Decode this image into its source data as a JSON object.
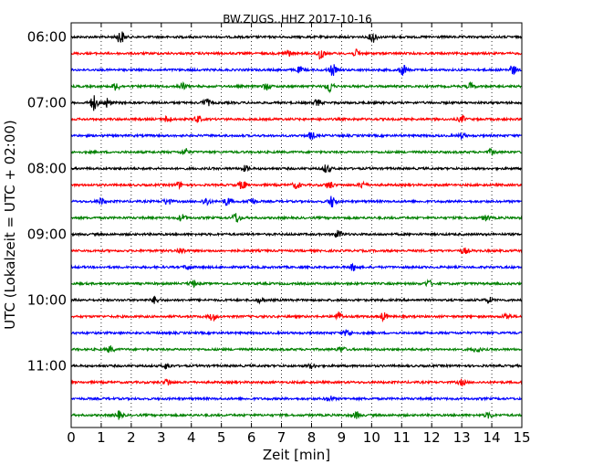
{
  "chart_data": {
    "type": "line",
    "title": "BW.ZUGS..HHZ 2017-10-16",
    "xlabel": "Zeit  [min]",
    "ylabel": "UTC (Lokalzeit = UTC + 02:00)",
    "xlim": [
      0,
      15
    ],
    "x_ticks": [
      "0",
      "1",
      "2",
      "3",
      "4",
      "5",
      "6",
      "7",
      "8",
      "9",
      "10",
      "11",
      "12",
      "13",
      "14",
      "15"
    ],
    "y_ticks": [
      "06:00",
      "07:00",
      "08:00",
      "09:00",
      "10:00",
      "11:00"
    ],
    "grid": "x-dotted",
    "trace_interval_min": 15,
    "trace_colors": [
      "#000000",
      "#ff0000",
      "#0000ff",
      "#008000"
    ],
    "traces": [
      {
        "start": "06:00",
        "color": "#000000",
        "events": [
          [
            1.65,
            0.9
          ],
          [
            10.05,
            0.7
          ]
        ]
      },
      {
        "start": "06:15",
        "color": "#ff0000",
        "events": [
          [
            7.2,
            0.45
          ],
          [
            8.3,
            0.9
          ],
          [
            9.5,
            0.45
          ]
        ]
      },
      {
        "start": "06:30",
        "color": "#0000ff",
        "events": [
          [
            7.6,
            0.35
          ],
          [
            8.7,
            0.75
          ],
          [
            11.05,
            0.7
          ],
          [
            14.7,
            0.6
          ]
        ]
      },
      {
        "start": "06:45",
        "color": "#008000",
        "events": [
          [
            1.5,
            0.5
          ],
          [
            3.7,
            0.45
          ],
          [
            6.5,
            0.45
          ],
          [
            8.6,
            0.85
          ],
          [
            13.3,
            0.4
          ]
        ]
      },
      {
        "start": "07:00",
        "color": "#000000",
        "events": [
          [
            0.75,
            1.0
          ],
          [
            1.2,
            0.6
          ],
          [
            4.5,
            0.5
          ],
          [
            8.2,
            0.4
          ]
        ]
      },
      {
        "start": "07:15",
        "color": "#ff0000",
        "events": [
          [
            3.2,
            0.4
          ],
          [
            4.2,
            0.45
          ],
          [
            13.0,
            0.4
          ]
        ]
      },
      {
        "start": "07:30",
        "color": "#0000ff",
        "events": [
          [
            8.0,
            0.45
          ],
          [
            13.0,
            0.3
          ]
        ]
      },
      {
        "start": "07:45",
        "color": "#008000",
        "events": [
          [
            3.8,
            0.45
          ],
          [
            14.0,
            0.35
          ]
        ]
      },
      {
        "start": "08:00",
        "color": "#000000",
        "events": [
          [
            5.8,
            0.35
          ],
          [
            8.5,
            0.55
          ]
        ]
      },
      {
        "start": "08:15",
        "color": "#ff0000",
        "events": [
          [
            3.6,
            0.35
          ],
          [
            5.7,
            0.6
          ],
          [
            7.5,
            0.45
          ],
          [
            8.6,
            0.5
          ],
          [
            9.7,
            0.4
          ]
        ]
      },
      {
        "start": "08:30",
        "color": "#0000ff",
        "events": [
          [
            1.0,
            0.45
          ],
          [
            3.2,
            0.45
          ],
          [
            4.5,
            0.55
          ],
          [
            5.2,
            0.55
          ],
          [
            6.0,
            0.45
          ],
          [
            8.7,
            0.8
          ]
        ]
      },
      {
        "start": "08:45",
        "color": "#008000",
        "events": [
          [
            3.7,
            0.45
          ],
          [
            5.5,
            0.7
          ],
          [
            13.8,
            0.35
          ]
        ]
      },
      {
        "start": "09:00",
        "color": "#000000",
        "events": [
          [
            8.9,
            0.5
          ]
        ]
      },
      {
        "start": "09:15",
        "color": "#ff0000",
        "events": [
          [
            3.65,
            0.4
          ],
          [
            13.1,
            0.35
          ]
        ]
      },
      {
        "start": "09:30",
        "color": "#0000ff",
        "events": [
          [
            3.9,
            0.35
          ],
          [
            9.4,
            0.45
          ]
        ]
      },
      {
        "start": "09:45",
        "color": "#008000",
        "events": [
          [
            4.05,
            0.4
          ],
          [
            11.9,
            0.4
          ]
        ]
      },
      {
        "start": "10:00",
        "color": "#000000",
        "events": [
          [
            2.8,
            0.45
          ],
          [
            6.3,
            0.3
          ],
          [
            13.9,
            0.35
          ]
        ]
      },
      {
        "start": "10:15",
        "color": "#ff0000",
        "events": [
          [
            4.7,
            0.5
          ],
          [
            8.9,
            0.55
          ],
          [
            10.4,
            0.5
          ],
          [
            14.5,
            0.4
          ]
        ]
      },
      {
        "start": "10:30",
        "color": "#0000ff",
        "events": [
          [
            9.2,
            0.5
          ]
        ]
      },
      {
        "start": "10:45",
        "color": "#008000",
        "events": [
          [
            1.3,
            0.4
          ],
          [
            9.0,
            0.35
          ],
          [
            13.5,
            0.35
          ]
        ]
      },
      {
        "start": "11:00",
        "color": "#000000",
        "events": [
          [
            3.2,
            0.4
          ],
          [
            8.0,
            0.3
          ]
        ]
      },
      {
        "start": "11:15",
        "color": "#ff0000",
        "events": [
          [
            3.2,
            0.45
          ],
          [
            13.0,
            0.35
          ]
        ]
      },
      {
        "start": "11:30",
        "color": "#0000ff",
        "events": [
          [
            8.6,
            0.35
          ]
        ]
      },
      {
        "start": "11:45",
        "color": "#008000",
        "events": [
          [
            1.6,
            0.5
          ],
          [
            9.5,
            0.4
          ],
          [
            13.9,
            0.35
          ]
        ]
      }
    ]
  }
}
